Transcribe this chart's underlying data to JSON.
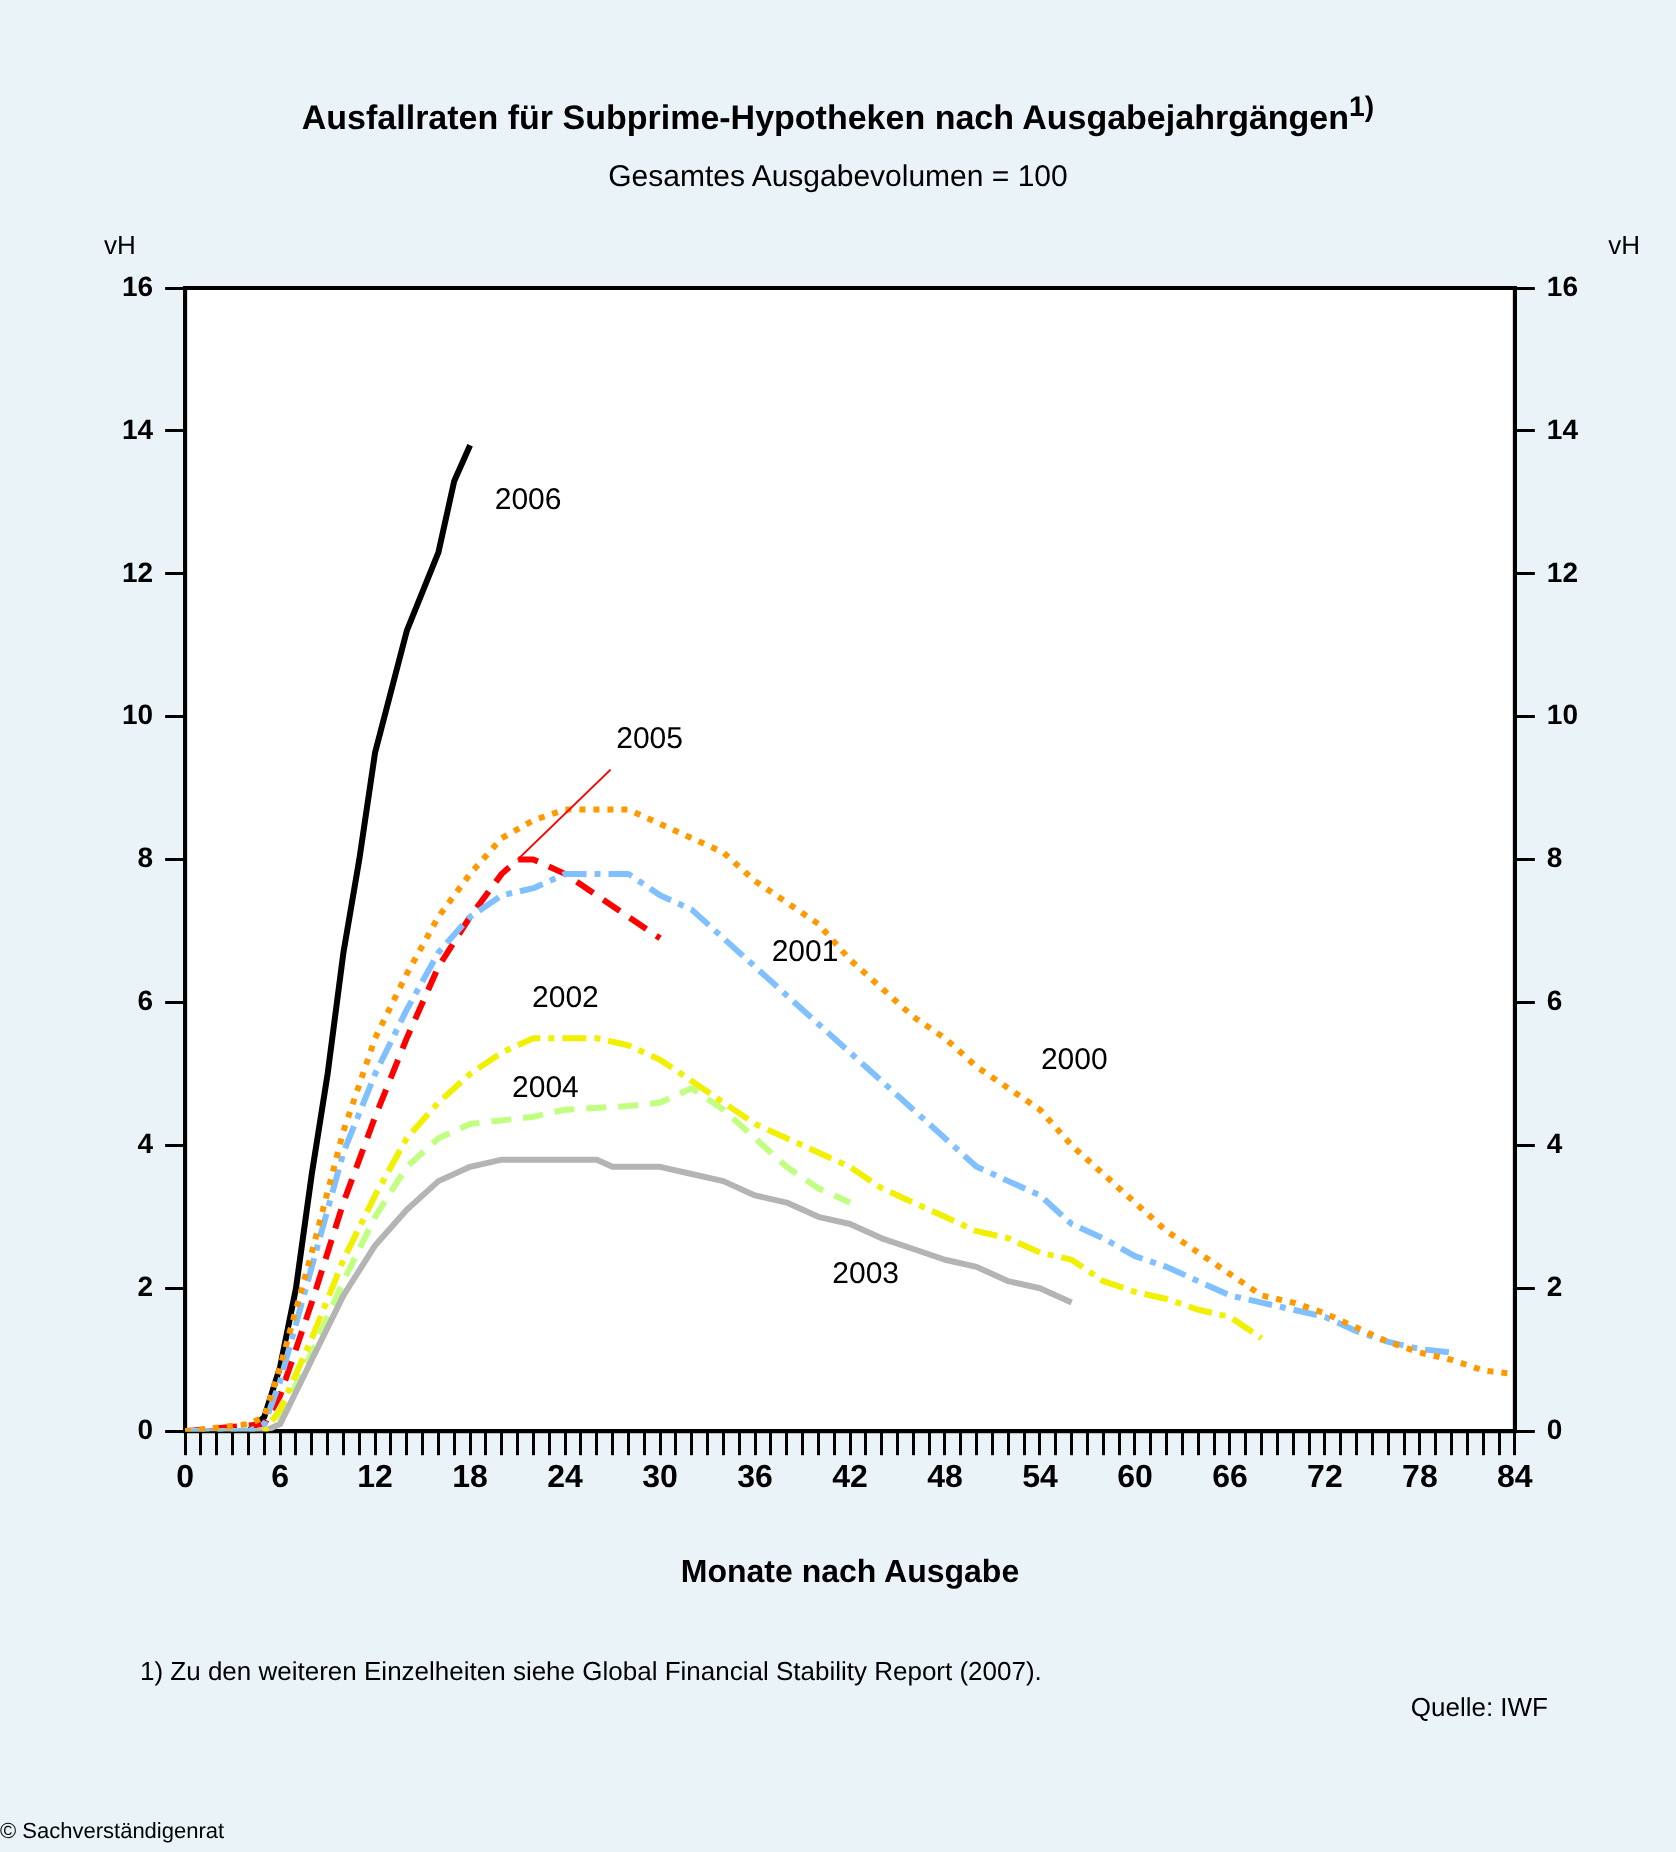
{
  "chart_data": {
    "type": "line",
    "title": "Ausfallraten für Subprime-Hypotheken nach Ausgabejahrgängen$^{1)}$",
    "subtitle": "Gesamtes Ausgabevolumen = 100",
    "xlabel": "Monate nach Ausgabe",
    "ylabel": "vH",
    "y2label": "vH",
    "xlim": [
      0,
      84
    ],
    "xticks": [
      0,
      {
        "value": 1,
        "label": null
      },
      {
        "value": 2,
        "label": null
      },
      {
        "value": 3,
        "label": null
      },
      {
        "value": 4,
        "label": null
      },
      {
        "value": 5,
        "label": null
      },
      6,
      {
        "value": 7,
        "label": null
      },
      {
        "value": 8,
        "label": null
      },
      {
        "value": 9,
        "label": null
      },
      {
        "value": 10,
        "label": null
      },
      {
        "value": 11,
        "label": null
      },
      12,
      {
        "value": 13,
        "label": null
      },
      {
        "value": 14,
        "label": null
      },
      {
        "value": 15,
        "label": null
      },
      {
        "value": 16,
        "label": null
      },
      {
        "value": 17,
        "label": null
      },
      18,
      {
        "value": 19,
        "label": null
      },
      {
        "value": 20,
        "label": null
      },
      {
        "value": 21,
        "label": null
      },
      {
        "value": 22,
        "label": null
      },
      {
        "value": 23,
        "label": null
      },
      24,
      {
        "value": 25,
        "label": null
      },
      {
        "value": 26,
        "label": null
      },
      {
        "value": 27,
        "label": null
      },
      {
        "value": 28,
        "label": null
      },
      {
        "value": 29,
        "label": null
      },
      30,
      {
        "value": 31,
        "label": null
      },
      {
        "value": 32,
        "label": null
      },
      {
        "value": 33,
        "label": null
      },
      {
        "value": 34,
        "label": null
      },
      {
        "value": 35,
        "label": null
      },
      36,
      {
        "value": 37,
        "label": null
      },
      {
        "value": 38,
        "label": null
      },
      {
        "value": 39,
        "label": null
      },
      {
        "value": 40,
        "label": null
      },
      {
        "value": 41,
        "label": null
      },
      42,
      {
        "value": 43,
        "label": null
      },
      {
        "value": 44,
        "label": null
      },
      {
        "value": 45,
        "label": null
      },
      {
        "value": 46,
        "label": null
      },
      {
        "value": 47,
        "label": null
      },
      48,
      {
        "value": 49,
        "label": null
      },
      {
        "value": 50,
        "label": null
      },
      {
        "value": 51,
        "label": null
      },
      {
        "value": 52,
        "label": null
      },
      {
        "value": 53,
        "label": null
      },
      54,
      {
        "value": 55,
        "label": null
      },
      {
        "value": 56,
        "label": null
      },
      {
        "value": 57,
        "label": null
      },
      {
        "value": 58,
        "label": null
      },
      {
        "value": 59,
        "label": null
      },
      60,
      {
        "value": 61,
        "label": null
      },
      {
        "value": 62,
        "label": null
      },
      {
        "value": 63,
        "label": null
      },
      {
        "value": 64,
        "label": null
      },
      {
        "value": 65,
        "label": null
      },
      66,
      {
        "value": 67,
        "label": null
      },
      {
        "value": 68,
        "label": null
      },
      {
        "value": 69,
        "label": null
      },
      {
        "value": 70,
        "label": null
      },
      {
        "value": 71,
        "label": null
      },
      72,
      {
        "value": 73,
        "label": null
      },
      {
        "value": 74,
        "label": null
      },
      {
        "value": 75,
        "label": null
      },
      {
        "value": 76,
        "label": null
      },
      {
        "value": 77,
        "label": null
      },
      78,
      {
        "value": 79,
        "label": null
      },
      {
        "value": 80,
        "label": null
      },
      {
        "value": 81,
        "label": null
      },
      {
        "value": 82,
        "label": null
      },
      {
        "value": 83,
        "label": null
      },
      84
    ],
    "ylim": [
      0,
      16
    ],
    "yticks": [
      0,
      2,
      4,
      6,
      8,
      10,
      12,
      14,
      16
    ],
    "y2lim": [
      0,
      16
    ],
    "y2ticks": [
      0,
      2,
      4,
      6,
      8,
      10,
      12,
      14,
      16
    ],
    "grid": false,
    "legend": false,
    "marker": "none",
    "series": [
      {
        "name": "2000",
        "color": "#ff9900",
        "line_style": "dotted",
        "x": [
          0,
          4,
          5,
          6,
          8,
          10,
          12,
          14,
          16,
          18,
          20,
          22,
          24,
          28,
          30,
          32,
          34,
          36,
          38,
          40,
          42,
          44,
          46,
          48,
          50,
          52,
          54,
          56,
          58,
          60,
          62,
          64,
          66,
          68,
          70,
          72,
          74,
          76,
          78,
          80,
          82,
          84
        ],
        "values": [
          0,
          0.1,
          0.2,
          0.9,
          2.5,
          4.2,
          5.5,
          6.4,
          7.2,
          7.8,
          8.3,
          8.55,
          8.7,
          8.7,
          8.5,
          8.3,
          8.1,
          7.7,
          7.4,
          7.1,
          6.6,
          6.2,
          5.8,
          5.5,
          5.1,
          4.8,
          4.5,
          4.0,
          3.6,
          3.2,
          2.8,
          2.5,
          2.2,
          1.9,
          1.8,
          1.65,
          1.45,
          1.25,
          1.1,
          1.0,
          0.85,
          0.8
        ]
      },
      {
        "name": "2001",
        "color": "#80c0ff",
        "line_style": "dashdot",
        "x": [
          0,
          4,
          5,
          6,
          8,
          10,
          12,
          14,
          16,
          18,
          20,
          22,
          24,
          28,
          30,
          32,
          34,
          36,
          38,
          40,
          42,
          44,
          46,
          48,
          50,
          52,
          54,
          56,
          58,
          60,
          62,
          64,
          66,
          68,
          70,
          72,
          74,
          76,
          78,
          80
        ],
        "values": [
          0,
          0,
          0.1,
          0.7,
          2.3,
          3.9,
          5.0,
          5.9,
          6.7,
          7.2,
          7.5,
          7.6,
          7.8,
          7.8,
          7.5,
          7.3,
          6.9,
          6.5,
          6.1,
          5.7,
          5.3,
          4.9,
          4.5,
          4.1,
          3.7,
          3.5,
          3.3,
          2.9,
          2.7,
          2.45,
          2.3,
          2.1,
          1.9,
          1.8,
          1.7,
          1.6,
          1.4,
          1.25,
          1.15,
          1.1
        ]
      },
      {
        "name": "2002",
        "color": "#f0f000",
        "line_style": "dashdot",
        "x": [
          0,
          5,
          6,
          8,
          10,
          12,
          14,
          16,
          18,
          20,
          22,
          26,
          28,
          30,
          32,
          34,
          36,
          38,
          40,
          42,
          44,
          46,
          48,
          50,
          52,
          54,
          56,
          58,
          60,
          62,
          64,
          66,
          68
        ],
        "values": [
          0,
          0,
          0.3,
          1.3,
          2.4,
          3.3,
          4.1,
          4.6,
          5.0,
          5.3,
          5.5,
          5.5,
          5.4,
          5.2,
          4.9,
          4.6,
          4.3,
          4.1,
          3.9,
          3.7,
          3.4,
          3.2,
          3.0,
          2.8,
          2.7,
          2.5,
          2.4,
          2.1,
          1.95,
          1.85,
          1.7,
          1.6,
          1.3
        ]
      },
      {
        "name": "2003",
        "color": "#b4b4b4",
        "line_style": "solid",
        "x": [
          0,
          5,
          6,
          8,
          10,
          12,
          14,
          16,
          18,
          20,
          26,
          27,
          30,
          32,
          34,
          36,
          38,
          40,
          42,
          44,
          46,
          48,
          50,
          52,
          54,
          56
        ],
        "values": [
          0,
          0,
          0.1,
          1.0,
          1.9,
          2.6,
          3.1,
          3.5,
          3.7,
          3.8,
          3.8,
          3.7,
          3.7,
          3.6,
          3.5,
          3.3,
          3.2,
          3.0,
          2.9,
          2.7,
          2.55,
          2.4,
          2.3,
          2.1,
          2.0,
          1.8
        ]
      },
      {
        "name": "2004",
        "color": "#c0ff80",
        "line_style": "dashed",
        "x": [
          0,
          5,
          6,
          8,
          10,
          12,
          14,
          16,
          18,
          20,
          22,
          24,
          28,
          30,
          32,
          34,
          36,
          38,
          40,
          42
        ],
        "values": [
          0,
          0,
          0.2,
          1.1,
          2.1,
          3.0,
          3.7,
          4.1,
          4.3,
          4.35,
          4.4,
          4.5,
          4.55,
          4.6,
          4.8,
          4.5,
          4.1,
          3.7,
          3.4,
          3.2
        ]
      },
      {
        "name": "2005",
        "color": "#ff0000",
        "line_style": "dashed",
        "x": [
          0,
          5,
          6,
          8,
          10,
          12,
          14,
          16,
          18,
          20,
          21,
          22,
          24,
          26,
          28,
          30
        ],
        "values": [
          0,
          0.1,
          0.5,
          1.8,
          3.2,
          4.4,
          5.5,
          6.5,
          7.2,
          7.8,
          8.0,
          8.0,
          7.8,
          7.5,
          7.2,
          6.9
        ]
      },
      {
        "name": "2006",
        "color": "#000000",
        "line_style": "solid",
        "x": [
          0,
          4,
          5,
          6,
          7,
          8,
          9,
          10,
          11,
          12,
          14,
          16,
          17,
          18
        ],
        "values": [
          0,
          0,
          0.2,
          0.9,
          2.0,
          3.6,
          5.0,
          6.7,
          8.0,
          9.5,
          11.2,
          12.3,
          13.3,
          13.8
        ]
      }
    ],
    "annotations": [
      "1) Zu den weiteren Einzelheiten siehe Global Financial Stability Report (2007).",
      "Quelle: IWF",
      "© Sachverständigenrat"
    ]
  }
}
